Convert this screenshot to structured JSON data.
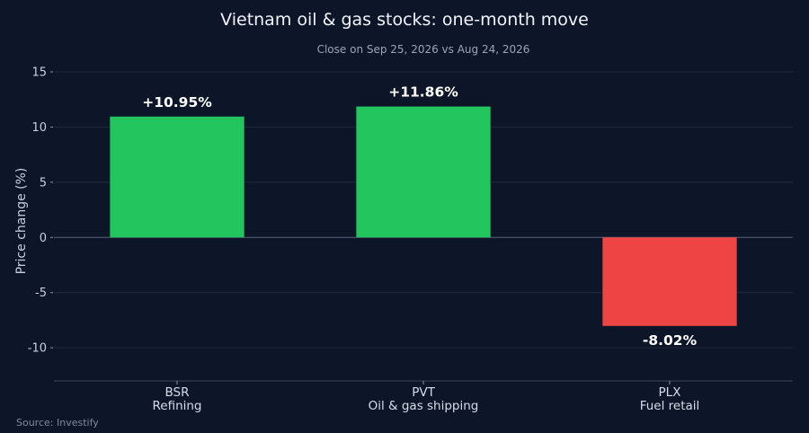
{
  "chart_data": {
    "type": "bar",
    "title": "Vietnam oil & gas stocks: one-month move",
    "subtitle": "Close on Sep 25, 2026 vs Aug 24, 2026",
    "ylabel": "Price change (%)",
    "xlabel": "",
    "ylim": [
      -13,
      15
    ],
    "yticks": [
      15,
      10,
      5,
      0,
      -5,
      -10
    ],
    "ytick_labels": [
      "15",
      "10",
      "5",
      "0",
      "-5",
      "-10"
    ],
    "grid": true,
    "categories": [
      {
        "ticker": "BSR",
        "sector": "Refining"
      },
      {
        "ticker": "PVT",
        "sector": "Oil & gas shipping"
      },
      {
        "ticker": "PLX",
        "sector": "Fuel retail"
      }
    ],
    "values": [
      10.95,
      11.86,
      -8.02
    ],
    "data_labels": [
      "+10.95%",
      "+11.86%",
      "-8.02%"
    ],
    "colors": {
      "positive": "#22c55e",
      "negative": "#ef4444",
      "background": "#0d1628"
    },
    "source": "Source: Investify"
  }
}
